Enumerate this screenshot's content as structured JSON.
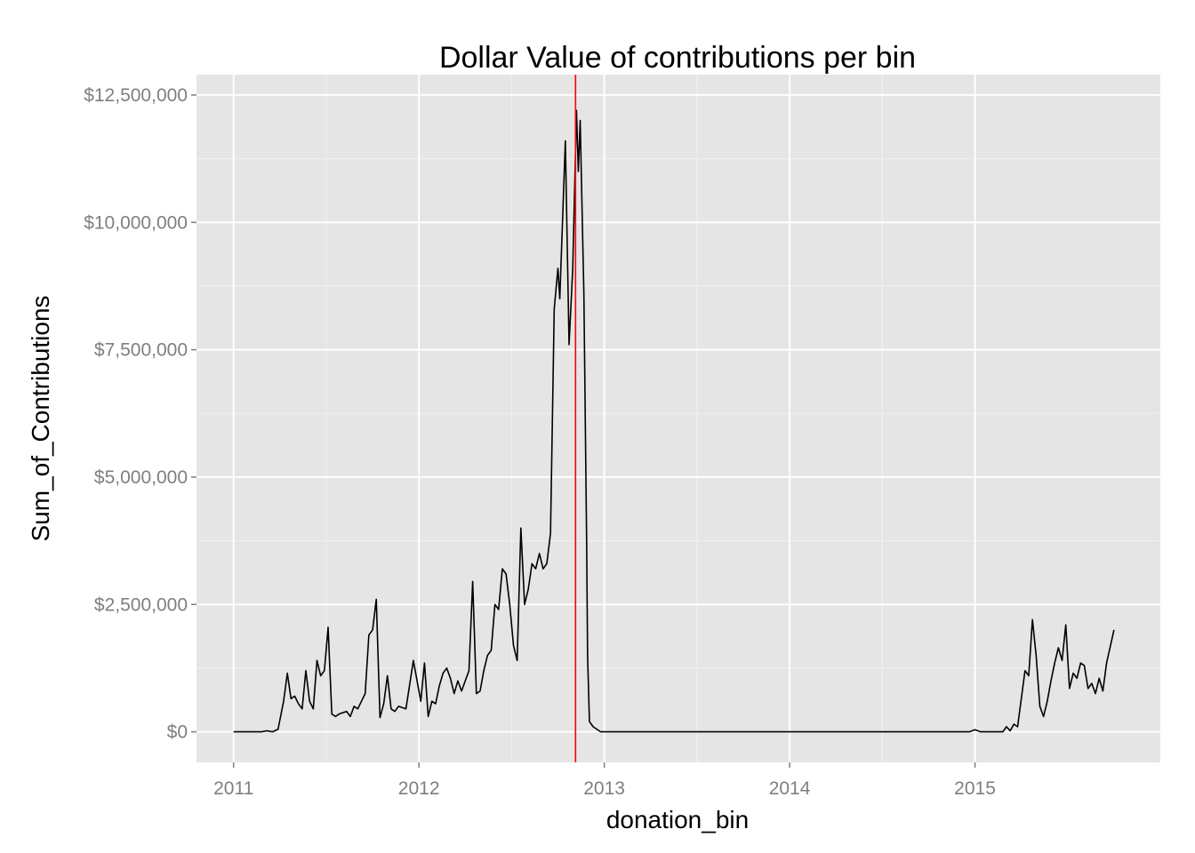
{
  "chart_data": {
    "type": "line",
    "title": "Dollar Value of contributions per bin",
    "xlabel": "donation_bin",
    "ylabel": "Sum_of_Contributions",
    "xlim": [
      2010.8,
      2016.0
    ],
    "ylim": [
      -600000,
      12900000
    ],
    "x_ticks": [
      2011,
      2012,
      2013,
      2014,
      2015
    ],
    "x_tick_labels": [
      "2011",
      "2012",
      "2013",
      "2014",
      "2015"
    ],
    "y_ticks": [
      0,
      2500000,
      5000000,
      7500000,
      10000000,
      12500000
    ],
    "y_tick_labels": [
      "$0",
      "$2,500,000",
      "$5,000,000",
      "$7,500,000",
      "$10,000,000",
      "$12,500,000"
    ],
    "grid": true,
    "legend": "none",
    "colors": {
      "panel_background": "#e5e5e5",
      "grid_major": "#ffffff",
      "grid_minor": "#f2f2f2",
      "line": "#000000",
      "reference_line": "#ff0000"
    },
    "reference_line": {
      "x": 2012.845,
      "color": "#ff0000"
    },
    "series": [
      {
        "values": [
          [
            2011.0,
            0
          ],
          [
            2011.05,
            0
          ],
          [
            2011.1,
            0
          ],
          [
            2011.15,
            0
          ],
          [
            2011.18,
            20000
          ],
          [
            2011.21,
            0
          ],
          [
            2011.24,
            50000
          ],
          [
            2011.27,
            600000
          ],
          [
            2011.29,
            1150000
          ],
          [
            2011.31,
            650000
          ],
          [
            2011.33,
            700000
          ],
          [
            2011.35,
            550000
          ],
          [
            2011.37,
            450000
          ],
          [
            2011.39,
            1200000
          ],
          [
            2011.41,
            600000
          ],
          [
            2011.43,
            450000
          ],
          [
            2011.45,
            1400000
          ],
          [
            2011.47,
            1100000
          ],
          [
            2011.49,
            1200000
          ],
          [
            2011.51,
            2050000
          ],
          [
            2011.53,
            350000
          ],
          [
            2011.55,
            300000
          ],
          [
            2011.57,
            350000
          ],
          [
            2011.61,
            400000
          ],
          [
            2011.63,
            300000
          ],
          [
            2011.65,
            500000
          ],
          [
            2011.67,
            450000
          ],
          [
            2011.71,
            750000
          ],
          [
            2011.73,
            1900000
          ],
          [
            2011.75,
            2000000
          ],
          [
            2011.77,
            2600000
          ],
          [
            2011.79,
            280000
          ],
          [
            2011.81,
            550000
          ],
          [
            2011.83,
            1100000
          ],
          [
            2011.85,
            450000
          ],
          [
            2011.87,
            400000
          ],
          [
            2011.89,
            500000
          ],
          [
            2011.93,
            450000
          ],
          [
            2011.97,
            1400000
          ],
          [
            2012.01,
            600000
          ],
          [
            2012.03,
            1350000
          ],
          [
            2012.05,
            300000
          ],
          [
            2012.07,
            600000
          ],
          [
            2012.09,
            550000
          ],
          [
            2012.11,
            900000
          ],
          [
            2012.13,
            1150000
          ],
          [
            2012.15,
            1250000
          ],
          [
            2012.17,
            1050000
          ],
          [
            2012.19,
            750000
          ],
          [
            2012.21,
            1000000
          ],
          [
            2012.23,
            800000
          ],
          [
            2012.27,
            1200000
          ],
          [
            2012.29,
            2950000
          ],
          [
            2012.31,
            750000
          ],
          [
            2012.33,
            800000
          ],
          [
            2012.35,
            1200000
          ],
          [
            2012.37,
            1500000
          ],
          [
            2012.39,
            1600000
          ],
          [
            2012.41,
            2500000
          ],
          [
            2012.43,
            2400000
          ],
          [
            2012.45,
            3200000
          ],
          [
            2012.47,
            3100000
          ],
          [
            2012.49,
            2500000
          ],
          [
            2012.51,
            1700000
          ],
          [
            2012.53,
            1400000
          ],
          [
            2012.55,
            4000000
          ],
          [
            2012.57,
            2500000
          ],
          [
            2012.59,
            2800000
          ],
          [
            2012.61,
            3300000
          ],
          [
            2012.63,
            3200000
          ],
          [
            2012.65,
            3500000
          ],
          [
            2012.67,
            3200000
          ],
          [
            2012.69,
            3300000
          ],
          [
            2012.71,
            3900000
          ],
          [
            2012.73,
            8300000
          ],
          [
            2012.75,
            9100000
          ],
          [
            2012.76,
            8500000
          ],
          [
            2012.79,
            11600000
          ],
          [
            2012.81,
            7600000
          ],
          [
            2012.83,
            9100000
          ],
          [
            2012.85,
            12200000
          ],
          [
            2012.86,
            11000000
          ],
          [
            2012.87,
            12000000
          ],
          [
            2012.89,
            8600000
          ],
          [
            2012.905,
            3700000
          ],
          [
            2012.91,
            1500000
          ],
          [
            2012.92,
            200000
          ],
          [
            2012.94,
            100000
          ],
          [
            2012.96,
            50000
          ],
          [
            2012.98,
            0
          ],
          [
            2013.0,
            0
          ],
          [
            2013.5,
            0
          ],
          [
            2014.0,
            0
          ],
          [
            2014.5,
            0
          ],
          [
            2014.97,
            0
          ],
          [
            2015.0,
            40000
          ],
          [
            2015.03,
            0
          ],
          [
            2015.15,
            0
          ],
          [
            2015.17,
            100000
          ],
          [
            2015.19,
            20000
          ],
          [
            2015.21,
            150000
          ],
          [
            2015.23,
            100000
          ],
          [
            2015.27,
            1200000
          ],
          [
            2015.29,
            1100000
          ],
          [
            2015.31,
            2200000
          ],
          [
            2015.33,
            1500000
          ],
          [
            2015.35,
            500000
          ],
          [
            2015.37,
            300000
          ],
          [
            2015.39,
            600000
          ],
          [
            2015.41,
            1000000
          ],
          [
            2015.43,
            1350000
          ],
          [
            2015.45,
            1650000
          ],
          [
            2015.47,
            1400000
          ],
          [
            2015.49,
            2100000
          ],
          [
            2015.51,
            850000
          ],
          [
            2015.53,
            1150000
          ],
          [
            2015.55,
            1050000
          ],
          [
            2015.57,
            1350000
          ],
          [
            2015.59,
            1300000
          ],
          [
            2015.61,
            850000
          ],
          [
            2015.63,
            950000
          ],
          [
            2015.65,
            750000
          ],
          [
            2015.67,
            1050000
          ],
          [
            2015.69,
            800000
          ],
          [
            2015.71,
            1350000
          ],
          [
            2015.75,
            2000000
          ]
        ]
      }
    ]
  }
}
